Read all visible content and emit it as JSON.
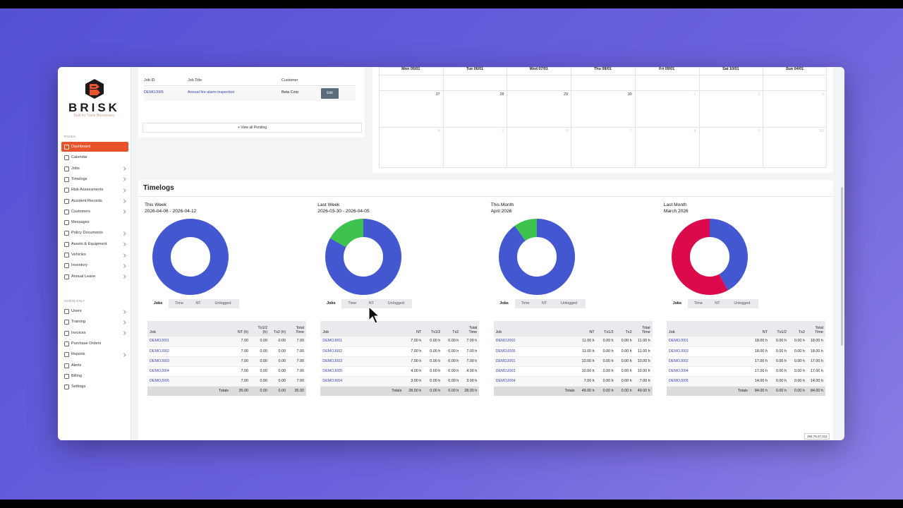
{
  "sidebar": {
    "brand": "BRISK",
    "tagline": "Built for Trade Businesses",
    "pages_label": "PAGES",
    "pages": [
      "Dashboard",
      "Calendar",
      "Jobs",
      "Timelogs",
      "Risk Assessments",
      "Accident Records",
      "Customers",
      "Messages",
      "Policy Documents",
      "Assets & Equipment",
      "Vehicles",
      "Inventory",
      "Annual Leave"
    ],
    "admin_label": "ADMIN ONLY",
    "admin": [
      "Users",
      "Training",
      "Invoices",
      "Purchase Orders",
      "Reports",
      "Alerts",
      "Billing",
      "Settings"
    ]
  },
  "pending_jobs": {
    "columns": [
      "Job ID",
      "Job Title",
      "Customer"
    ],
    "rows": [
      [
        "DEMOJ005",
        "Annual fire alarm inspection",
        "Beta Corp"
      ]
    ],
    "action": "Edit",
    "view_all": "+ View all Pending"
  },
  "calendar": {
    "days": [
      "Mon 05/01",
      "Tue 06/01",
      "Wed 07/01",
      "Thu 08/01",
      "Fri 09/01",
      "Sat 10/01",
      "Sun 04/01"
    ],
    "weeks": [
      [
        "27",
        "28",
        "29",
        "30",
        "1",
        "2",
        "3"
      ],
      [
        "4",
        "5",
        "6",
        "7",
        "8",
        "9",
        "10"
      ]
    ]
  },
  "timelogs": {
    "title": "Timelogs",
    "tabs": [
      "Jobs",
      "Time",
      "NT",
      "Unlogged"
    ],
    "panels": [
      {
        "title": "This Week",
        "range": "2026-04-06 - 2026-04-12",
        "chart": {
          "type": "pie",
          "values": [
            100
          ],
          "colors": [
            "#4358d0"
          ]
        },
        "columns": [
          "Job",
          "NT (h)",
          "Tx1/2 (h)",
          "Tx2 (h)",
          "Total Time"
        ],
        "rows": [
          [
            "DEMOJ001",
            "7.00",
            "0.00",
            "0.00",
            "7.00"
          ],
          [
            "DEMOJ002",
            "7.00",
            "0.00",
            "0.00",
            "7.00"
          ],
          [
            "DEMOJ003",
            "7.00",
            "0.00",
            "0.00",
            "7.00"
          ],
          [
            "DEMOJ004",
            "7.00",
            "0.00",
            "0.00",
            "7.00"
          ],
          [
            "DEMOJ005",
            "7.00",
            "0.00",
            "0.00",
            "7.00"
          ]
        ],
        "totals": [
          "Totals",
          "35.00",
          "0.00",
          "0.00",
          "35.00"
        ]
      },
      {
        "title": "Last Week",
        "range": "2026-03-30 - 2026-04-05",
        "chart": {
          "type": "pie",
          "values": [
            83,
            17
          ],
          "colors": [
            "#4358d0",
            "#3ec24e"
          ]
        },
        "columns": [
          "Job",
          "NT",
          "Tx1/2",
          "Tx2",
          "Total Time"
        ],
        "rows": [
          [
            "DEMOJ001",
            "7.00 h",
            "0.00 h",
            "0.00 h",
            "7.00 h"
          ],
          [
            "DEMOJ002",
            "7.00 h",
            "0.00 h",
            "0.00 h",
            "7.00 h"
          ],
          [
            "DEMOJ003",
            "7.00 h",
            "0.00 h",
            "0.00 h",
            "7.00 h"
          ],
          [
            "DEMOJ005",
            "4.00 h",
            "0.00 h",
            "0.00 h",
            "4.00 h"
          ],
          [
            "DEMOJ004",
            "3.00 h",
            "0.00 h",
            "0.00 h",
            "3.00 h"
          ]
        ],
        "totals": [
          "Totals",
          "28.00 h",
          "0.00 h",
          "0.00 h",
          "28.00 h"
        ]
      },
      {
        "title": "This Month",
        "range": "April 2026",
        "chart": {
          "type": "pie",
          "values": [
            90,
            10
          ],
          "colors": [
            "#4358d0",
            "#3ec24e"
          ]
        },
        "columns": [
          "Job",
          "NT",
          "Tx1/2",
          "Tx2",
          "Total Time"
        ],
        "rows": [
          [
            "DEMOJ002",
            "11.00 h",
            "0.00 h",
            "0.00 h",
            "11.00 h"
          ],
          [
            "DEMOJ005",
            "11.00 h",
            "0.00 h",
            "0.00 h",
            "11.00 h"
          ],
          [
            "DEMOJ001",
            "10.00 h",
            "0.00 h",
            "0.00 h",
            "10.00 h"
          ],
          [
            "DEMOJ003",
            "10.00 h",
            "0.00 h",
            "0.00 h",
            "10.00 h"
          ],
          [
            "DEMOJ004",
            "7.00 h",
            "0.00 h",
            "0.00 h",
            "7.00 h"
          ]
        ],
        "totals": [
          "Totals",
          "49.00 h",
          "0.00 h",
          "0.00 h",
          "49.00 h"
        ]
      },
      {
        "title": "Last Month",
        "range": "March 2026",
        "chart": {
          "type": "pie",
          "values": [
            42,
            58
          ],
          "colors": [
            "#4358d0",
            "#dc0a4b"
          ]
        },
        "columns": [
          "Job",
          "NT",
          "Tx1/2",
          "Tx2",
          "Total Time"
        ],
        "rows": [
          [
            "DEMOJ001",
            "18.00 h",
            "0.00 h",
            "0.00 h",
            "18.00 h"
          ],
          [
            "DEMOJ003",
            "18.00 h",
            "0.00 h",
            "0.00 h",
            "18.00 h"
          ],
          [
            "DEMOJ002",
            "17.00 h",
            "0.00 h",
            "0.00 h",
            "17.00 h"
          ],
          [
            "DEMOJ004",
            "17.00 h",
            "0.00 h",
            "0.00 h",
            "17.00 h"
          ],
          [
            "DEMOJ005",
            "14.00 h",
            "0.00 h",
            "0.00 h",
            "14.00 h"
          ]
        ],
        "totals": [
          "Totals",
          "84.00 h",
          "0.00 h",
          "0.00 h",
          "84.00 h"
        ]
      }
    ]
  },
  "ip": "194.76.27.211"
}
